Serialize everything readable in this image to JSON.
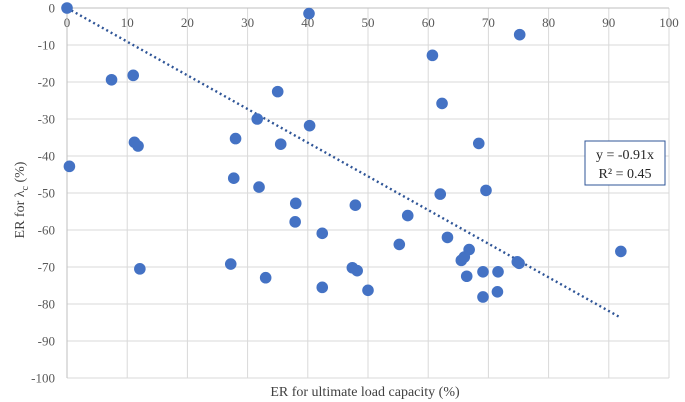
{
  "chart_data": {
    "type": "scatter",
    "xlabel": "ER for ultimate load capacity (%)",
    "ylabel_main": "ER for λ",
    "ylabel_sub": "c",
    "ylabel_suffix": " (%)",
    "xlim": [
      0,
      100
    ],
    "ylim": [
      -100,
      0
    ],
    "xticks": [
      0,
      10,
      20,
      30,
      40,
      50,
      60,
      70,
      80,
      90,
      100
    ],
    "yticks": [
      0,
      -10,
      -20,
      -30,
      -40,
      -50,
      -60,
      -70,
      -80,
      -90,
      -100
    ],
    "grid": true,
    "legend": "none",
    "series": [
      {
        "name": "data",
        "color": "#4472c4",
        "points": [
          [
            0,
            0
          ],
          [
            40.2,
            -1.5
          ],
          [
            75.2,
            -7.2
          ],
          [
            60.7,
            -12.8
          ],
          [
            7.4,
            -19.4
          ],
          [
            11.0,
            -18.2
          ],
          [
            35.0,
            -22.6
          ],
          [
            62.3,
            -25.8
          ],
          [
            31.6,
            -30.0
          ],
          [
            40.3,
            -31.8
          ],
          [
            0.4,
            -42.8
          ],
          [
            11.2,
            -36.3
          ],
          [
            11.8,
            -37.3
          ],
          [
            28.0,
            -35.3
          ],
          [
            35.5,
            -36.8
          ],
          [
            68.4,
            -36.6
          ],
          [
            27.7,
            -46.0
          ],
          [
            31.9,
            -48.4
          ],
          [
            62.0,
            -50.3
          ],
          [
            69.6,
            -49.3
          ],
          [
            38.0,
            -52.8
          ],
          [
            47.9,
            -53.3
          ],
          [
            37.9,
            -57.8
          ],
          [
            56.6,
            -56.1
          ],
          [
            42.4,
            -60.9
          ],
          [
            55.2,
            -63.9
          ],
          [
            63.2,
            -62.0
          ],
          [
            12.1,
            -70.5
          ],
          [
            27.2,
            -69.2
          ],
          [
            33.0,
            -72.9
          ],
          [
            47.4,
            -70.2
          ],
          [
            48.2,
            -71.0
          ],
          [
            65.5,
            -68.2
          ],
          [
            66.0,
            -67.3
          ],
          [
            66.8,
            -65.3
          ],
          [
            74.8,
            -68.6
          ],
          [
            75.1,
            -69.0
          ],
          [
            92.0,
            -65.8
          ],
          [
            66.4,
            -72.5
          ],
          [
            69.1,
            -71.3
          ],
          [
            71.6,
            -71.3
          ],
          [
            42.4,
            -75.5
          ],
          [
            50.0,
            -76.3
          ],
          [
            69.1,
            -78.1
          ],
          [
            71.5,
            -76.7
          ]
        ]
      }
    ],
    "trendline": {
      "x_start": 0,
      "x_end": 92,
      "slope": -0.91,
      "color": "#2f5597"
    },
    "annotation": {
      "equation": "y = -0.91x",
      "r_squared": "R² = 0.45"
    }
  }
}
